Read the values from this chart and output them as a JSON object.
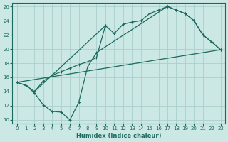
{
  "xlabel": "Humidex (Indice chaleur)",
  "bg_color": "#cce8e5",
  "grid_color": "#aacfcc",
  "line_color": "#1a6b5e",
  "xlim": [
    -0.5,
    23.5
  ],
  "ylim": [
    9.5,
    26.5
  ],
  "xticks": [
    0,
    1,
    2,
    3,
    4,
    5,
    6,
    7,
    8,
    9,
    10,
    11,
    12,
    13,
    14,
    15,
    16,
    17,
    18,
    19,
    20,
    21,
    22,
    23
  ],
  "yticks": [
    10,
    12,
    14,
    16,
    18,
    20,
    22,
    24,
    26
  ],
  "line1_x": [
    0,
    1,
    2,
    10,
    11,
    12,
    13,
    14,
    15,
    16,
    17,
    18,
    19,
    20,
    21,
    22,
    23
  ],
  "line1_y": [
    15.3,
    14.9,
    14.0,
    23.3,
    22.2,
    23.5,
    23.8,
    24.0,
    25.0,
    25.5,
    26.0,
    25.5,
    25.0,
    24.0,
    22.0,
    21.0,
    19.9
  ],
  "line2_x": [
    0,
    1,
    2,
    3,
    4,
    5,
    6,
    7,
    8,
    9,
    17,
    18,
    19,
    20,
    21,
    22,
    23
  ],
  "line2_y": [
    15.3,
    14.9,
    13.8,
    12.1,
    11.2,
    11.1,
    10.0,
    12.5,
    17.5,
    19.5,
    26.0,
    25.5,
    25.0,
    24.0,
    22.0,
    21.0,
    19.9
  ],
  "line3_x": [
    0,
    23
  ],
  "line3_y": [
    15.3,
    19.9
  ],
  "jagged_x": [
    2,
    3,
    4,
    5,
    6,
    7,
    8,
    9,
    10
  ],
  "jagged_y": [
    14.0,
    15.5,
    16.3,
    16.8,
    17.3,
    17.8,
    18.2,
    18.8,
    23.3
  ]
}
